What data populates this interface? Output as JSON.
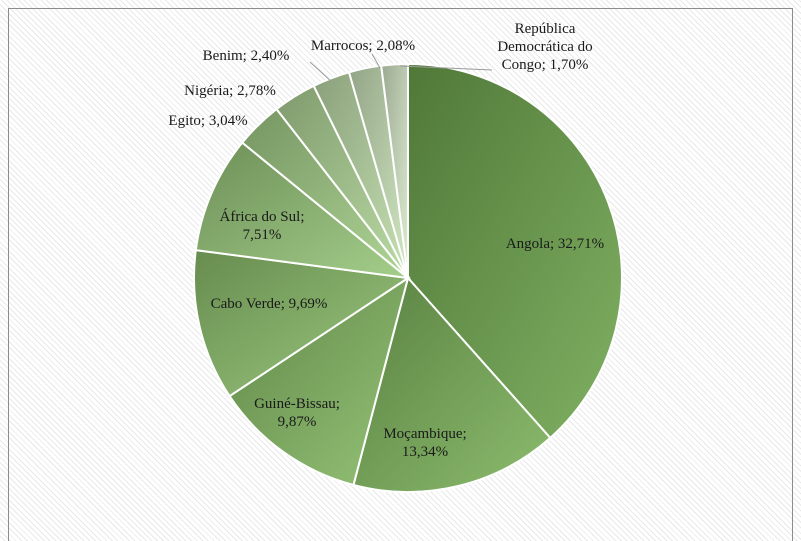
{
  "chart_data": {
    "type": "pie",
    "title": "",
    "start_angle_deg": 0,
    "direction": "clockwise",
    "legend": "none",
    "slices": [
      {
        "label": "Angola",
        "value": 32.71,
        "display": "Angola; 32,71%",
        "color": "#6fa64e"
      },
      {
        "label": "Moçambique",
        "value": 13.34,
        "display": "Moçambique; 13,34%",
        "color": "#7cb35a"
      },
      {
        "label": "Guiné-Bissau",
        "value": 9.87,
        "display": "Guiné-Bissau; 9,87%",
        "color": "#86bb64"
      },
      {
        "label": "Cabo Verde",
        "value": 9.69,
        "display": "Cabo Verde; 9,69%",
        "color": "#8fc26e"
      },
      {
        "label": "África do Sul",
        "value": 7.51,
        "display": "África do Sul; 7,51%",
        "color": "#98c77a"
      },
      {
        "label": "Egito",
        "value": 3.04,
        "display": "Egito; 3,04%",
        "color": "#a4cf88"
      },
      {
        "label": "Nigéria",
        "value": 2.78,
        "display": "Nigéria; 2,78%",
        "color": "#b1d698"
      },
      {
        "label": "Benim",
        "value": 2.4,
        "display": "Benim; 2,40%",
        "color": "#bedda9"
      },
      {
        "label": "Marrocos",
        "value": 2.08,
        "display": "Marrocos; 2,08%",
        "color": "#cbe4ba"
      },
      {
        "label": "República Democrática do Congo",
        "value": 1.7,
        "display": "República Democrática do Congo; 1,70%",
        "color": "#d8ebcb"
      }
    ]
  }
}
